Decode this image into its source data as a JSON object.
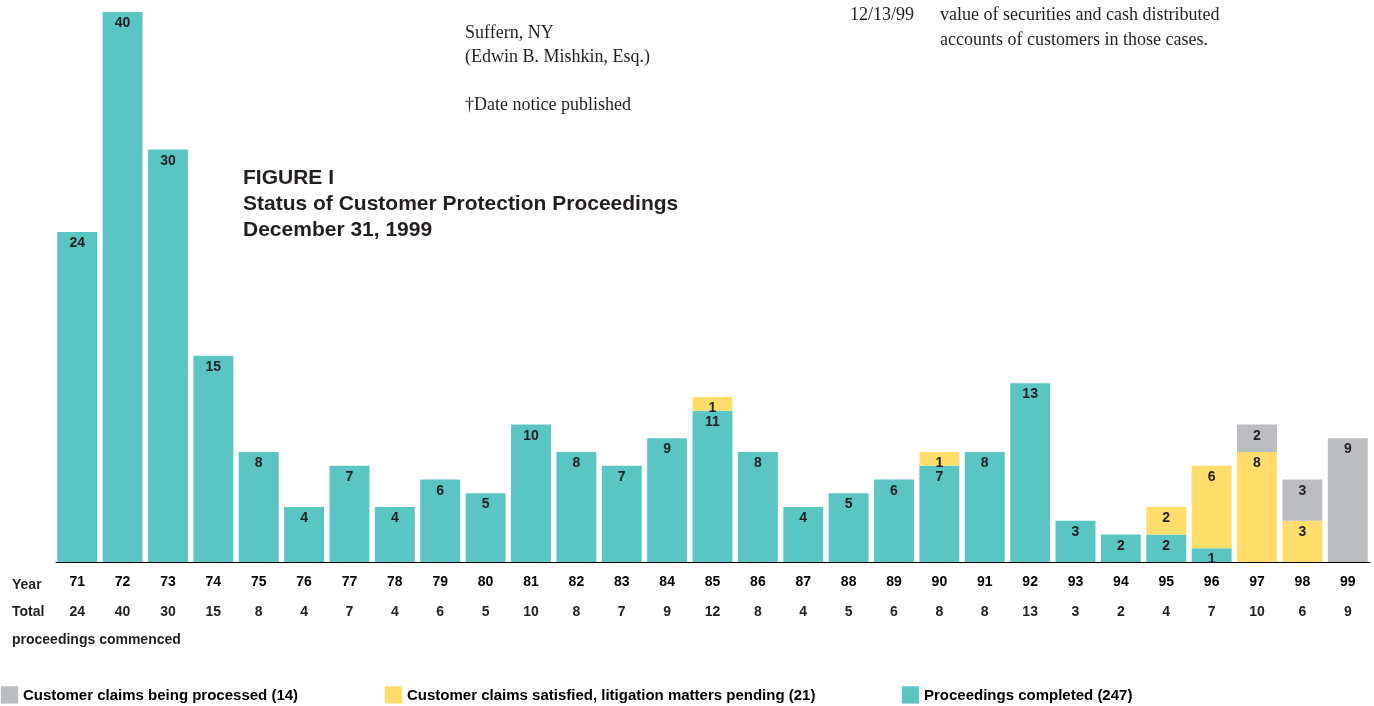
{
  "chart_data": {
    "type": "bar",
    "title": "FIGURE I",
    "subtitle": "Status of Customer Protection Proceedings\nDecember 31, 1999",
    "xlabel": "Year",
    "categories": [
      "71",
      "72",
      "73",
      "74",
      "75",
      "76",
      "77",
      "78",
      "79",
      "80",
      "81",
      "82",
      "83",
      "84",
      "85",
      "86",
      "87",
      "88",
      "89",
      "90",
      "91",
      "92",
      "93",
      "94",
      "95",
      "96",
      "97",
      "98",
      "99"
    ],
    "stacked": true,
    "data_labels": true,
    "legend": "bottom",
    "grid": false,
    "series": [
      {
        "name": "Proceedings completed (247)",
        "color": "#5bc5c4",
        "values": [
          24,
          40,
          30,
          15,
          8,
          4,
          7,
          4,
          6,
          5,
          10,
          8,
          7,
          9,
          11,
          8,
          4,
          5,
          6,
          7,
          8,
          13,
          3,
          2,
          2,
          1,
          null,
          null,
          null
        ]
      },
      {
        "name": "Customer claims satisfied, litigation matters pending (21)",
        "color": "#fedd6b",
        "values": [
          null,
          null,
          null,
          null,
          null,
          null,
          null,
          null,
          null,
          null,
          null,
          null,
          null,
          null,
          1,
          null,
          null,
          null,
          null,
          1,
          null,
          null,
          null,
          null,
          2,
          6,
          8,
          3,
          null
        ]
      },
      {
        "name": "Customer claims being processed (14)",
        "color": "#bcbdc0",
        "values": [
          null,
          null,
          null,
          null,
          null,
          null,
          null,
          null,
          null,
          null,
          null,
          null,
          null,
          null,
          null,
          null,
          null,
          null,
          null,
          null,
          null,
          null,
          null,
          null,
          null,
          null,
          2,
          3,
          9
        ]
      }
    ],
    "totals": [
      "24",
      "40",
      "30",
      "15",
      "8",
      "4",
      "7",
      "4",
      "6",
      "5",
      "10",
      "8",
      "7",
      "9",
      "12",
      "8",
      "4",
      "5",
      "6",
      "8",
      "8",
      "13",
      "3",
      "2",
      "4",
      "7",
      "10",
      "6",
      "9"
    ],
    "annotations": [
      "Suffern, NY",
      "(Edwin B. Mishkin, Esq.)",
      "12/13/99",
      "†Date notice published",
      "value of securities and cash distributed",
      "accounts of customers in those cases.",
      "Total",
      "proceedings commenced"
    ]
  }
}
